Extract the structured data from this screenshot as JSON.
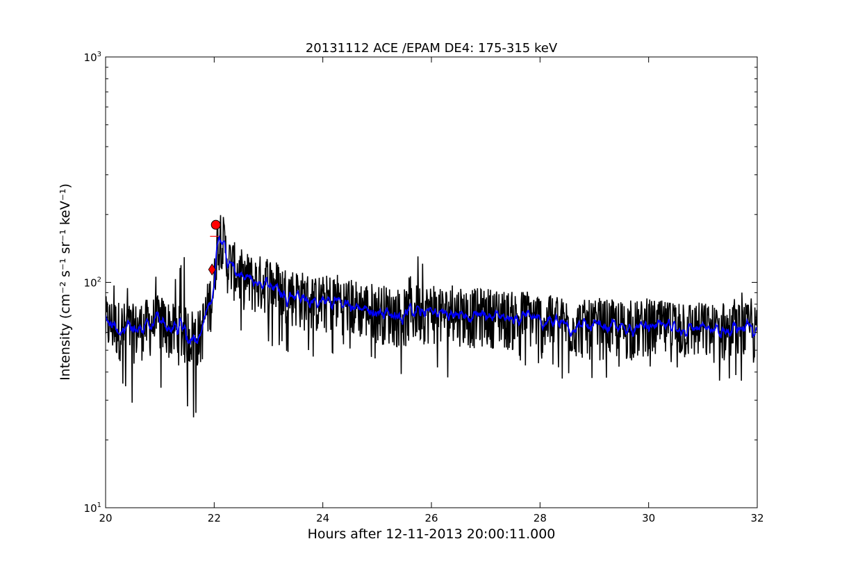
{
  "chart_data": {
    "type": "line",
    "title": "20131112 ACE /EPAM DE4: 175-315 keV",
    "xlabel": "Hours after 12-11-2013 20:00:11.000",
    "ylabel": "Intensity (cm⁻² s⁻¹ sr⁻¹ keV⁻¹)",
    "xlim": [
      20,
      32
    ],
    "ylim": [
      10,
      1000
    ],
    "yscale": "log",
    "grid": false,
    "legend": "none",
    "x_ticks": [
      20,
      22,
      24,
      26,
      28,
      30,
      32
    ],
    "x_tick_labels": [
      "20",
      "22",
      "24",
      "26",
      "28",
      "30",
      "32"
    ],
    "y_ticks": [
      10,
      100,
      1000
    ],
    "y_tick_labels": [
      {
        "base": "10",
        "exp": "1"
      },
      {
        "base": "10",
        "exp": "2"
      },
      {
        "base": "10",
        "exp": "3"
      }
    ],
    "series": [
      {
        "color": "#000000",
        "style": "raw",
        "x": [
          20.0,
          20.25,
          20.5,
          20.75,
          21.0,
          21.25,
          21.5,
          21.75,
          22.0,
          22.05,
          22.1,
          22.25,
          22.5,
          22.75,
          23.0,
          23.25,
          23.5,
          23.75,
          24.0,
          24.25,
          24.5,
          24.75,
          25.0,
          25.25,
          25.5,
          25.75,
          26.0,
          26.25,
          26.5,
          26.75,
          27.0,
          27.25,
          27.5,
          27.75,
          28.0,
          28.25,
          28.5,
          28.75,
          29.0,
          29.25,
          29.5,
          29.75,
          30.0,
          30.25,
          30.5,
          30.75,
          31.0,
          31.25,
          31.5,
          31.75,
          32.0
        ],
        "values": [
          65,
          62,
          60,
          63,
          66,
          60,
          58,
          57,
          92,
          150,
          170,
          120,
          105,
          98,
          100,
          90,
          86,
          82,
          80,
          83,
          78,
          76,
          74,
          72,
          70,
          74,
          73,
          71,
          72,
          70,
          71,
          70,
          68,
          70,
          67,
          65,
          64,
          63,
          62,
          63,
          62,
          62,
          63,
          62,
          61,
          62,
          61,
          60,
          60,
          61,
          58
        ],
        "noise_down": [
          0.6,
          0.55,
          0.45,
          0.45,
          0.45,
          0.5,
          0.4,
          0.45,
          0.6,
          0.6,
          0.65,
          0.55,
          0.55,
          0.55,
          0.5,
          0.55,
          0.55,
          0.6,
          0.5,
          0.55,
          0.6,
          0.6,
          0.55,
          0.5,
          0.55,
          0.55,
          0.55,
          0.55,
          0.45,
          0.4,
          0.6,
          0.6,
          0.65,
          0.6,
          0.6,
          0.6,
          0.55,
          0.6,
          0.55,
          0.6,
          0.6,
          0.6,
          0.6,
          0.6,
          0.6,
          0.6,
          0.55,
          0.55,
          0.6,
          0.55,
          0.55
        ],
        "noise_up": [
          1.55,
          1.6,
          1.6,
          1.7,
          1.6,
          1.7,
          2.4,
          1.6,
          1.5,
          1.2,
          1.1,
          1.2,
          1.25,
          1.3,
          1.9,
          1.3,
          1.3,
          1.3,
          1.3,
          1.3,
          1.3,
          1.3,
          1.3,
          1.35,
          1.35,
          1.8,
          1.4,
          1.3,
          1.4,
          1.35,
          1.3,
          1.35,
          1.3,
          1.35,
          1.3,
          1.35,
          1.3,
          1.3,
          1.5,
          1.35,
          1.35,
          1.35,
          1.35,
          1.35,
          1.35,
          1.35,
          1.4,
          1.35,
          1.35,
          1.5,
          1.4
        ]
      },
      {
        "color": "#0000ff",
        "style": "smoothed",
        "x": [
          20.0,
          20.25,
          20.5,
          20.75,
          21.0,
          21.25,
          21.5,
          21.75,
          22.0,
          22.05,
          22.1,
          22.25,
          22.5,
          22.75,
          23.0,
          23.25,
          23.5,
          23.75,
          24.0,
          24.25,
          24.5,
          24.75,
          25.0,
          25.25,
          25.5,
          25.75,
          26.0,
          26.25,
          26.5,
          26.75,
          27.0,
          27.25,
          27.5,
          27.75,
          28.0,
          28.25,
          28.5,
          28.75,
          29.0,
          29.25,
          29.5,
          29.75,
          30.0,
          30.25,
          30.5,
          30.75,
          31.0,
          31.25,
          31.5,
          31.75,
          32.0
        ],
        "values": [
          65,
          62,
          60,
          63,
          66,
          60,
          58,
          57,
          92,
          150,
          170,
          120,
          105,
          98,
          100,
          90,
          86,
          82,
          80,
          83,
          78,
          76,
          74,
          72,
          70,
          74,
          73,
          71,
          72,
          70,
          71,
          70,
          68,
          70,
          67,
          65,
          64,
          63,
          62,
          63,
          62,
          62,
          63,
          62,
          61,
          62,
          61,
          60,
          60,
          61,
          58
        ]
      }
    ],
    "markers": [
      {
        "shape": "diamond",
        "x": 21.96,
        "y": 114,
        "color": "#ff0000"
      },
      {
        "shape": "circle",
        "x": 22.03,
        "y": 180,
        "color": "#ff0000"
      },
      {
        "shape": "hline",
        "x": 22.0,
        "y": 160,
        "color": "#ff0000"
      }
    ]
  }
}
